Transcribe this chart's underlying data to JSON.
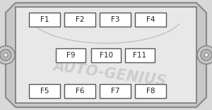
{
  "bg_color": "#d8d8d8",
  "outer_fill": "#c8c8c8",
  "outer_edge": "#888888",
  "inner_fill": "#e8e8e8",
  "inner_edge": "#777777",
  "fuse_fill": "#ffffff",
  "fuse_edge": "#555555",
  "watermark_color": "#bbbbbb",
  "watermark_text": "AUTO-GENIUS",
  "top_row": [
    "F1",
    "F2",
    "F3",
    "F4"
  ],
  "mid_row": [
    "F9",
    "F10",
    "F11"
  ],
  "bot_row": [
    "F5",
    "F6",
    "F7",
    "F8"
  ],
  "figw": 3.0,
  "figh": 1.57,
  "dpi": 100
}
